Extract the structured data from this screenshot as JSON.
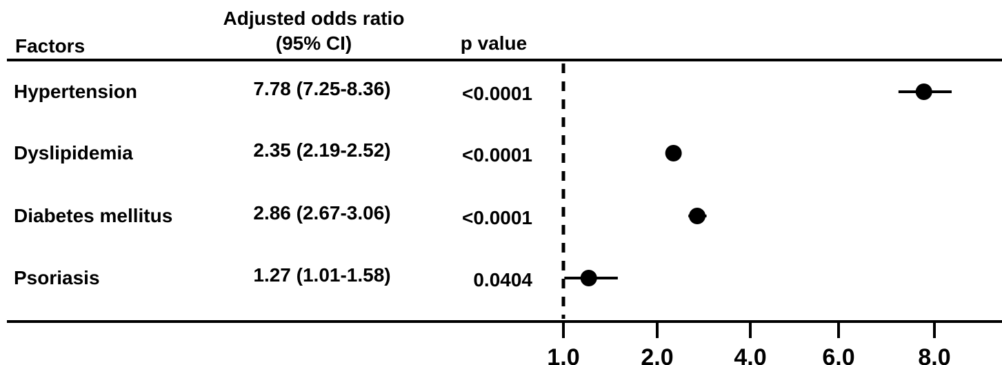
{
  "table": {
    "headers": {
      "factors": "Factors",
      "or_line1": "Adjusted odds ratio",
      "or_line2": "(95% CI)",
      "pvalue": "p value"
    }
  },
  "chart_data": {
    "type": "forest",
    "x_scale": "log",
    "reference_line": 1.0,
    "grid": false,
    "x_ticks": [
      {
        "value": 1.0,
        "label": "1.0"
      },
      {
        "value": 2.0,
        "label": "2.0"
      },
      {
        "value": 4.0,
        "label": "4.0"
      },
      {
        "value": 6.0,
        "label": "6.0"
      },
      {
        "value": 8.0,
        "label": "8.0"
      }
    ],
    "xlim": [
      1.0,
      12.0
    ],
    "rows": [
      {
        "factor": "Hypertension",
        "or_text": "7.78 (7.25-8.36)",
        "p_text": "<0.0001",
        "or": 7.78,
        "lo": 7.25,
        "hi": 8.36
      },
      {
        "factor": "Dyslipidemia",
        "or_text": "2.35 (2.19-2.52)",
        "p_text": "<0.0001",
        "or": 2.35,
        "lo": 2.19,
        "hi": 2.52
      },
      {
        "factor": "Diabetes mellitus",
        "or_text": "2.86 (2.67-3.06)",
        "p_text": "<0.0001",
        "or": 2.86,
        "lo": 2.67,
        "hi": 3.06
      },
      {
        "factor": "Psoriasis",
        "or_text": "1.27 (1.01-1.58)",
        "p_text": "0.0404",
        "or": 1.27,
        "lo": 1.01,
        "hi": 1.58
      }
    ]
  }
}
